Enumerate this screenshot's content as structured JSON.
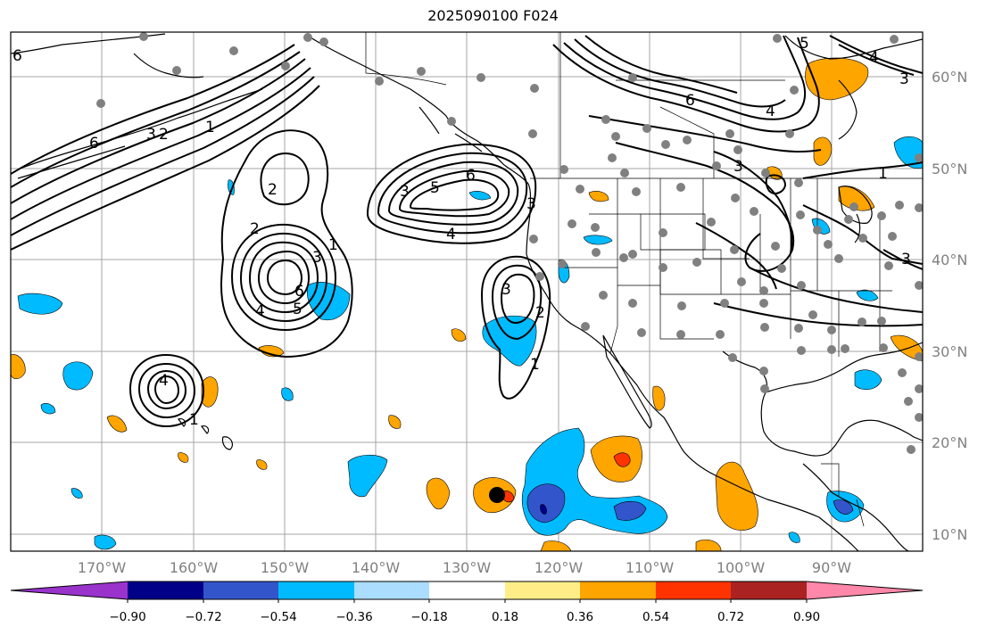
{
  "title": "2025090100 F024",
  "lat_labels": [
    "60°N",
    "50°N",
    "40°N",
    "30°N",
    "20°N",
    "10°N"
  ],
  "lon_labels": [
    "170°W",
    "160°W",
    "150°W",
    "140°W",
    "130°W",
    "120°W",
    "110°W",
    "100°W",
    "90°W"
  ],
  "colorbar": {
    "tick_labels": [
      "−0.90",
      "−0.72",
      "−0.54",
      "−0.36",
      "−0.18",
      "0.18",
      "0.36",
      "0.54",
      "0.72",
      "0.90"
    ],
    "colors": [
      "#9933cc",
      "#000088",
      "#3355cc",
      "#00bbff",
      "#aaddff",
      "#ffffff",
      "#ffee88",
      "#ffa500",
      "#ff3300",
      "#aa2222",
      "#ff88aa"
    ]
  },
  "contour_labels": [
    "6",
    "2",
    "3",
    "1",
    "2",
    "1",
    "3",
    "6",
    "5",
    "4",
    "2",
    "6",
    "4",
    "6",
    "5",
    "3",
    "4",
    "3",
    "2",
    "1",
    "3",
    "4",
    "6",
    "3",
    "4",
    "3",
    "1",
    "3",
    "1",
    "5"
  ],
  "colors": {
    "orange": "#ffa500",
    "cyan": "#00bbff",
    "blue": "#3355cc",
    "navy": "#000088",
    "red": "#ff3300",
    "station": "#808080"
  }
}
